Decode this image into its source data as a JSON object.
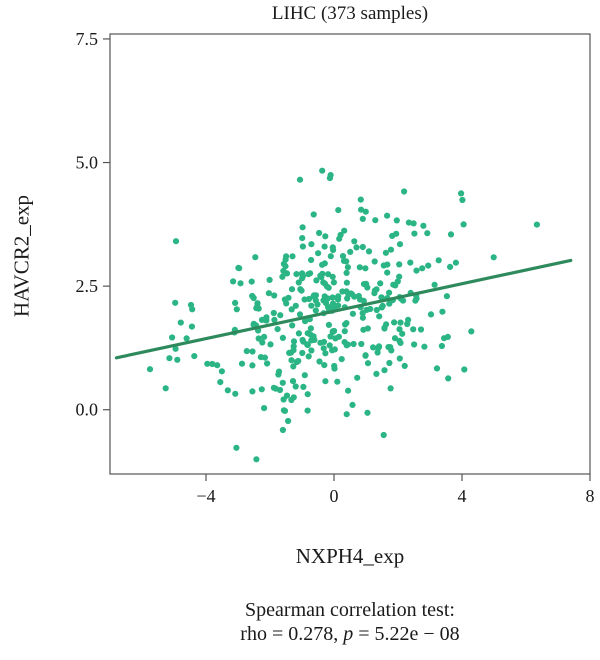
{
  "chart_data": {
    "type": "scatter",
    "title": "LIHC (373 samples)",
    "xlabel": "NXPH4_exp",
    "ylabel": "HAVCR2_exp",
    "xlim": [
      -7,
      8
    ],
    "ylim": [
      -1.3,
      7.6
    ],
    "xticks": [
      -4,
      0,
      4,
      8
    ],
    "xtick_labels": [
      "−4",
      "0",
      "4",
      "8"
    ],
    "yticks": [
      0.0,
      2.5,
      5.0,
      7.5
    ],
    "ytick_labels": [
      "0.0",
      "2.5",
      "5.0",
      "7.5"
    ],
    "grid": false,
    "point_color": "#2bb585",
    "line_color": "#2e8a5c",
    "regression_line": {
      "x": [
        -6.8,
        7.4
      ],
      "y": [
        1.05,
        3.02
      ]
    },
    "stats_line1": "Spearman correlation test:",
    "stats_rho": "rho = 0.278, ",
    "stats_p_symbol": "p",
    "stats_p_value": " = 5.22e − 08"
  }
}
